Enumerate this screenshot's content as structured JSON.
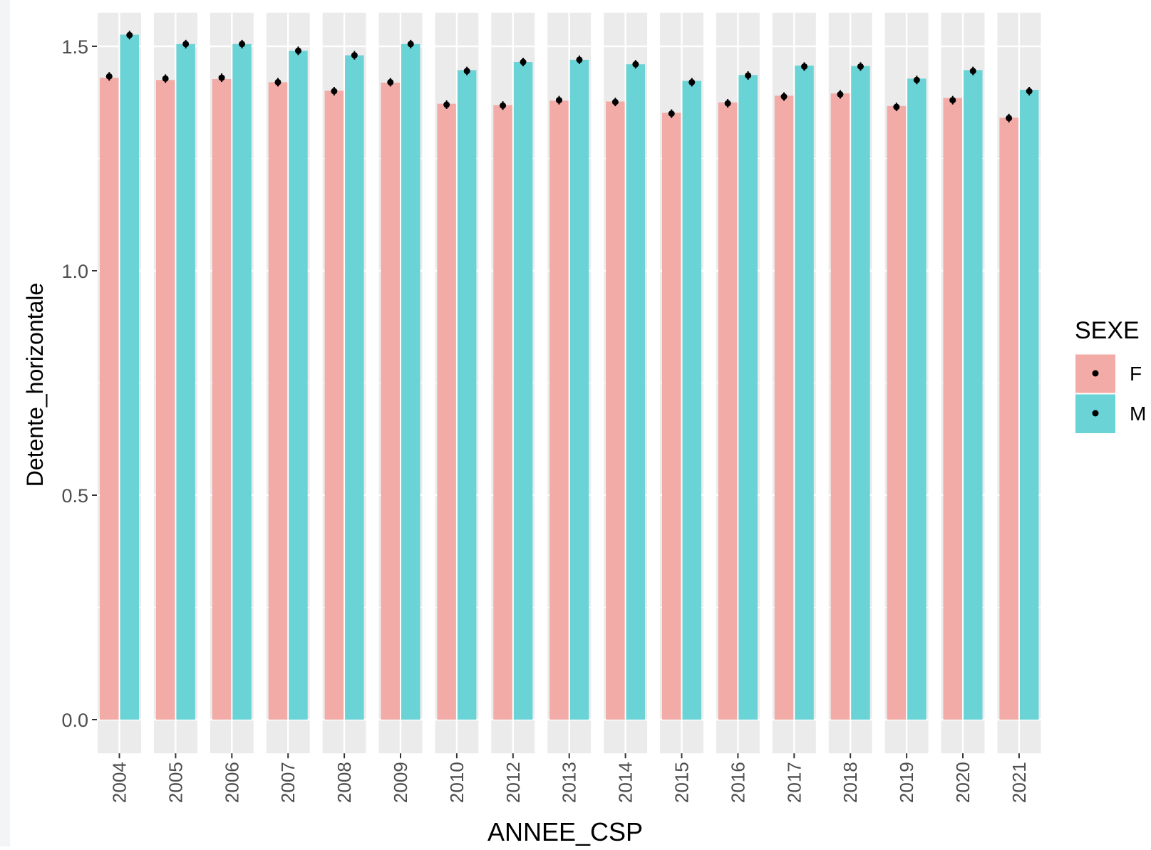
{
  "chart_data": {
    "type": "bar",
    "title": "",
    "xlabel": "ANNEE_CSP",
    "ylabel": "Detente_horizontale",
    "categories": [
      "2004",
      "2005",
      "2006",
      "2007",
      "2008",
      "2009",
      "2010",
      "2012",
      "2013",
      "2014",
      "2015",
      "2016",
      "2017",
      "2018",
      "2019",
      "2020",
      "2021"
    ],
    "legend_title": "SEXE",
    "legend_position": "right",
    "series": [
      {
        "name": "F",
        "color": "#F8766D",
        "values": [
          1.43,
          1.425,
          1.427,
          1.42,
          1.401,
          1.419,
          1.372,
          1.369,
          1.379,
          1.377,
          1.352,
          1.375,
          1.39,
          1.395,
          1.367,
          1.385,
          1.341
        ],
        "points": [
          1.433,
          1.428,
          1.43,
          1.42,
          1.4,
          1.42,
          1.37,
          1.368,
          1.38,
          1.376,
          1.35,
          1.373,
          1.388,
          1.393,
          1.365,
          1.38,
          1.34
        ]
      },
      {
        "name": "M",
        "color": "#00BFC4",
        "values": [
          1.526,
          1.505,
          1.505,
          1.49,
          1.48,
          1.505,
          1.447,
          1.465,
          1.47,
          1.46,
          1.423,
          1.436,
          1.457,
          1.456,
          1.428,
          1.447,
          1.403
        ],
        "points": [
          1.525,
          1.505,
          1.505,
          1.49,
          1.48,
          1.505,
          1.445,
          1.465,
          1.47,
          1.46,
          1.42,
          1.435,
          1.455,
          1.455,
          1.425,
          1.445,
          1.4
        ]
      }
    ],
    "y_ticks": [
      0.0,
      0.5,
      1.0,
      1.5
    ],
    "y_tick_labels": [
      "0.0",
      "0.5",
      "1.0",
      "1.5"
    ],
    "ylim": [
      -0.075,
      1.575
    ],
    "grid": true,
    "bar_alpha": 0.55
  }
}
